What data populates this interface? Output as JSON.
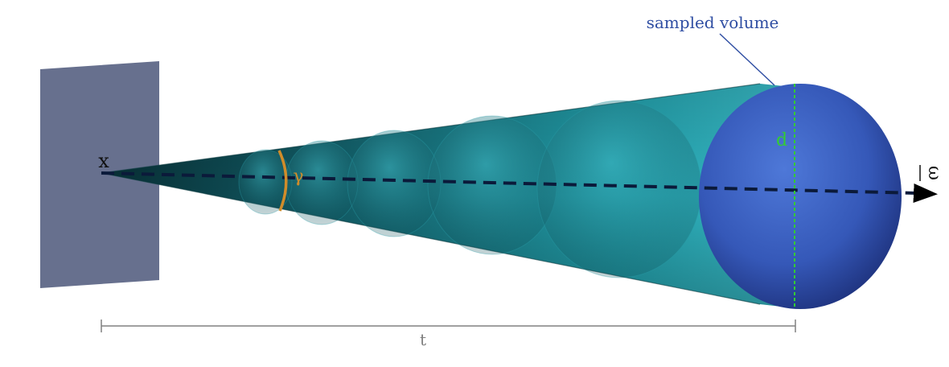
{
  "labels": {
    "sampled_volume": "sampled volume",
    "origin": "x",
    "angle": "γ",
    "diameter": "d",
    "direction": "ω",
    "distance": "t"
  },
  "colors": {
    "plane": "#67708e",
    "cone_dark": "#0a3a40",
    "cone_mid": "#1f8e9a",
    "cone_light": "#45c6d2",
    "sphere_light": "#4a6fd0",
    "sphere_dark": "#1c2f78",
    "sampled_label": "#2f4ea3",
    "angle_arc": "#d08c2a",
    "diameter_line": "#33cc33",
    "axis_dashes": "#0b1a3a",
    "measure_line": "#808080"
  }
}
